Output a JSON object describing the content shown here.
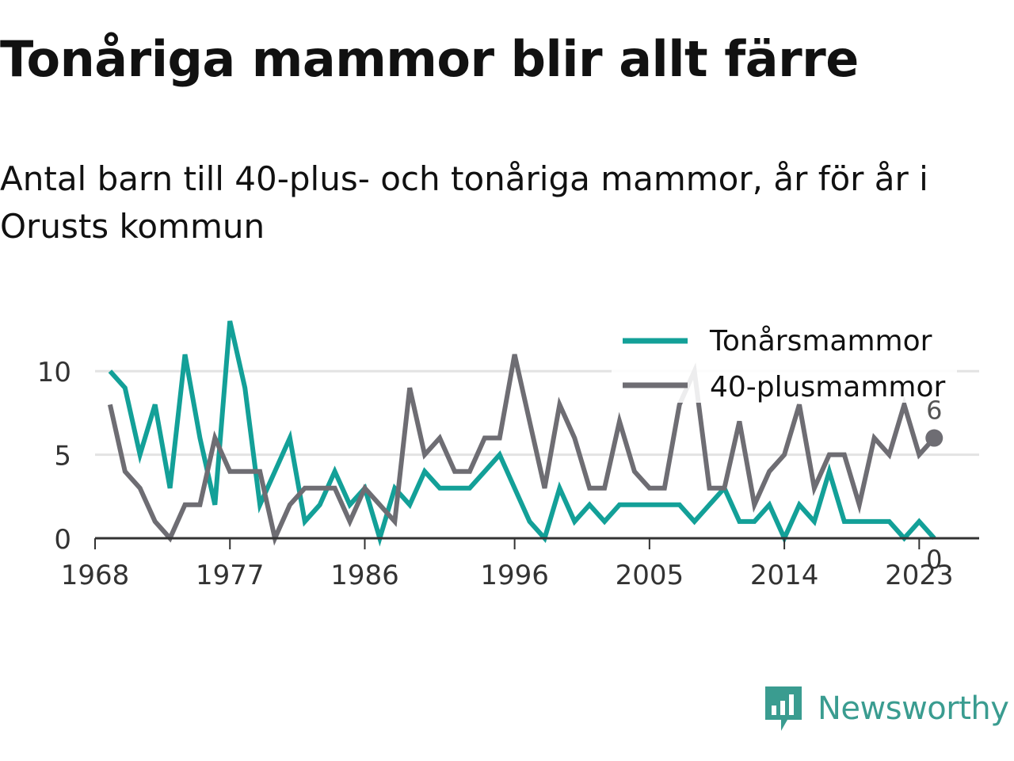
{
  "title": "Tonåriga mammor blir allt färre",
  "subtitle": "Antal barn till 40-plus- och tonåriga mammor, år för år i Orusts kommun",
  "brand": {
    "name": "Newsworthy",
    "color": "#3a9c90"
  },
  "chart_data": {
    "type": "line",
    "title": "Tonåriga mammor blir allt färre",
    "subtitle": "Antal barn till 40-plus- och tonåriga mammor, år för år i Orusts kommun",
    "x": [
      1969,
      1970,
      1971,
      1972,
      1973,
      1974,
      1975,
      1976,
      1977,
      1978,
      1979,
      1980,
      1981,
      1982,
      1983,
      1984,
      1985,
      1986,
      1987,
      1988,
      1989,
      1990,
      1991,
      1992,
      1993,
      1994,
      1995,
      1996,
      1997,
      1998,
      1999,
      2000,
      2001,
      2002,
      2003,
      2004,
      2005,
      2006,
      2007,
      2008,
      2009,
      2010,
      2011,
      2012,
      2013,
      2014,
      2015,
      2016,
      2017,
      2018,
      2019,
      2020,
      2021,
      2022,
      2023,
      2024
    ],
    "xticks": [
      "1968",
      "1977",
      "1986",
      "1996",
      "2005",
      "2014",
      "2023"
    ],
    "xlim": [
      1968,
      2027
    ],
    "yticks": [
      "0",
      "5",
      "10"
    ],
    "ylim": [
      0,
      13
    ],
    "grid": true,
    "legend_position": "top-right",
    "series": [
      {
        "name": "Tonårsmammor",
        "color": "#13a098",
        "values": [
          10,
          9,
          5,
          8,
          3,
          11,
          6,
          2,
          13,
          9,
          2,
          4,
          6,
          1,
          2,
          4,
          2,
          3,
          0,
          3,
          2,
          4,
          3,
          3,
          3,
          4,
          5,
          3,
          1,
          0,
          3,
          1,
          2,
          1,
          2,
          2,
          2,
          2,
          2,
          1,
          2,
          3,
          1,
          1,
          2,
          0,
          2,
          1,
          4,
          1,
          1,
          1,
          1,
          0,
          1,
          0
        ],
        "end_label": "0"
      },
      {
        "name": "40-plusmammor",
        "color": "#6e6d73",
        "values": [
          8,
          4,
          3,
          1,
          0,
          2,
          2,
          6,
          4,
          4,
          4,
          0,
          2,
          3,
          3,
          3,
          1,
          3,
          2,
          1,
          9,
          5,
          6,
          4,
          4,
          6,
          6,
          11,
          7,
          3,
          8,
          6,
          3,
          3,
          7,
          4,
          3,
          3,
          8,
          10,
          3,
          3,
          7,
          2,
          4,
          5,
          8,
          3,
          5,
          5,
          2,
          6,
          5,
          8,
          5,
          6
        ],
        "end_label": "6"
      }
    ]
  }
}
